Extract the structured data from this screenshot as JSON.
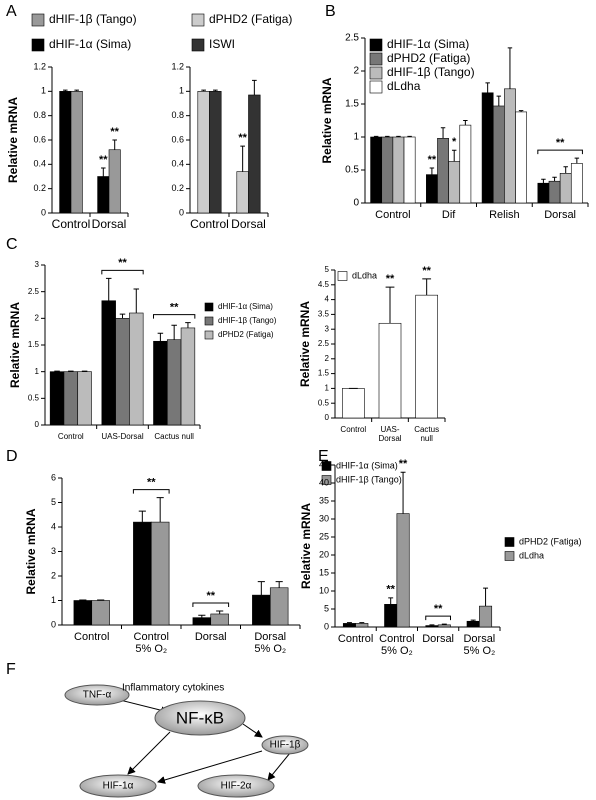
{
  "chart_data": [
    {
      "type": "bar",
      "panel": "A",
      "y_label": "Relative mRNA",
      "categories": [
        "Control",
        "Dorsal"
      ],
      "series": [
        {
          "name": "dHIF-1α (Sima)",
          "color": "#000000",
          "values": [
            1,
            0.3
          ],
          "errors": [
            0.01,
            0.07
          ]
        },
        {
          "name": "dHIF-1β (Tango)",
          "color": "#999999",
          "values": [
            1,
            0.52
          ],
          "errors": [
            0.01,
            0.08
          ]
        }
      ],
      "ylim": [
        0,
        1.2
      ],
      "yticks": [
        0,
        0.2,
        0.4,
        0.6,
        0.8,
        1,
        1.2
      ],
      "annotations": [
        {
          "text": "**",
          "category": "Dorsal",
          "series": "dHIF-1α (Sima)"
        },
        {
          "text": "**",
          "category": "Dorsal",
          "series": "dHIF-1β (Tango)"
        }
      ]
    },
    {
      "type": "bar",
      "categories": [
        "Control",
        "Dorsal"
      ],
      "series": [
        {
          "name": "dPHD2 (Fatiga)",
          "color": "#cccccc",
          "values": [
            1,
            0.34
          ],
          "errors": [
            0.01,
            0.21
          ]
        },
        {
          "name": "ISWI",
          "color": "#333333",
          "values": [
            1,
            0.97
          ],
          "errors": [
            0.01,
            0.12
          ]
        }
      ],
      "ylim": [
        0,
        1.2
      ],
      "yticks": [
        0,
        0.2,
        0.4,
        0.6,
        0.8,
        1,
        1.2
      ],
      "annotations": [
        {
          "text": "**",
          "category": "Dorsal",
          "series": "dPHD2 (Fatiga)"
        }
      ]
    },
    {
      "type": "bar",
      "panel": "B",
      "y_label": "Relative mRNA",
      "categories": [
        "Control",
        "Dif",
        "Relish",
        "Dorsal"
      ],
      "series": [
        {
          "name": "dHIF-1α (Sima)",
          "color": "#000000",
          "values": [
            1,
            0.43,
            1.67,
            0.3
          ],
          "errors": [
            0.01,
            0.1,
            0.15,
            0.06
          ]
        },
        {
          "name": "dPHD2 (Fatiga)",
          "color": "#777777",
          "values": [
            1,
            0.98,
            1.47,
            0.33
          ],
          "errors": [
            0.01,
            0.16,
            0.15,
            0.06
          ]
        },
        {
          "name": "dHIF-1β (Tango)",
          "color": "#bbbbbb",
          "values": [
            1,
            0.63,
            1.73,
            0.45
          ],
          "errors": [
            0.01,
            0.17,
            0.62,
            0.1
          ]
        },
        {
          "name": "dLdha",
          "color": "#ffffff",
          "values": [
            1,
            1.18,
            1.38,
            0.6
          ],
          "errors": [
            0.01,
            0.07,
            0.02,
            0.08
          ]
        }
      ],
      "ylim": [
        0,
        2.5
      ],
      "yticks": [
        0,
        0.5,
        1,
        1.5,
        2,
        2.5
      ],
      "annotations": [
        {
          "text": "**",
          "category": "Dif",
          "series": "dHIF-1α (Sima)"
        },
        {
          "text": "*",
          "category": "Dif",
          "series": "dHIF-1β (Tango)"
        },
        {
          "text": "**",
          "category": "Dorsal"
        }
      ]
    },
    {
      "type": "bar",
      "panel": "C",
      "y_label": "Relative mRNA",
      "categories": [
        "Control",
        "UAS-Dorsal",
        "Cactus null"
      ],
      "series": [
        {
          "name": "dHIF-1α (Sima)",
          "color": "#000000",
          "values": [
            1,
            2.33,
            1.57
          ],
          "errors": [
            0.01,
            0.42,
            0.15
          ]
        },
        {
          "name": "dHIF-1β (Tango)",
          "color": "#777777",
          "values": [
            1,
            2.0,
            1.6
          ],
          "errors": [
            0.01,
            0.08,
            0.27
          ]
        },
        {
          "name": "dPHD2 (Fatiga)",
          "color": "#bbbbbb",
          "values": [
            1,
            2.1,
            1.82
          ],
          "errors": [
            0.01,
            0.45,
            0.1
          ]
        }
      ],
      "ylim": [
        0,
        3
      ],
      "yticks": [
        0,
        0.5,
        1,
        1.5,
        2,
        2.5,
        3
      ],
      "annotations": [
        {
          "text": "**",
          "category": "UAS-Dorsal"
        },
        {
          "text": "**",
          "category": "Cactus null"
        }
      ]
    },
    {
      "type": "bar",
      "y_label": "Relative mRNA",
      "categories": [
        "Control",
        "UAS-Dorsal",
        "Cactus null"
      ],
      "series": [
        {
          "name": "dLdha",
          "color": "#ffffff",
          "values": [
            1,
            3.2,
            4.15
          ],
          "errors": [
            0,
            1.22,
            0.55
          ]
        }
      ],
      "ylim": [
        0,
        5
      ],
      "yticks": [
        0,
        0.5,
        1,
        1.5,
        2,
        2.5,
        3,
        3.5,
        4,
        4.5,
        5
      ],
      "annotations": [
        {
          "text": "**",
          "category": "UAS-Dorsal",
          "series": "dLdha"
        },
        {
          "text": "**",
          "category": "Cactus null",
          "series": "dLdha"
        }
      ]
    },
    {
      "type": "bar",
      "panel": "D",
      "y_label": "Relative mRNA",
      "categories": [
        "Control",
        "Control 5% O₂",
        "Dorsal",
        "Dorsal 5% O₂"
      ],
      "series": [
        {
          "name": "dHIF-1α (Sima)",
          "color": "#000000",
          "values": [
            1,
            4.2,
            0.3,
            1.22
          ],
          "errors": [
            0.02,
            0.45,
            0.1,
            0.55
          ]
        },
        {
          "name": "dHIF-1β (Tango)",
          "color": "#999999",
          "values": [
            1,
            4.2,
            0.45,
            1.52
          ],
          "errors": [
            0.02,
            1.0,
            0.12,
            0.25
          ]
        }
      ],
      "ylim": [
        0,
        6
      ],
      "yticks": [
        0,
        1,
        2,
        3,
        4,
        5,
        6
      ],
      "annotations": [
        {
          "text": "**",
          "category": "Control 5% O₂"
        },
        {
          "text": "**",
          "category": "Dorsal"
        }
      ]
    },
    {
      "type": "bar",
      "panel": "E",
      "y_label": "Relative mRNA",
      "categories": [
        "Control",
        "Control 5% O₂",
        "Dorsal",
        "Dorsal 5% O₂"
      ],
      "series": [
        {
          "name": "dPHD2 (Fatiga)",
          "color": "#000000",
          "values": [
            1,
            6.3,
            0.4,
            1.6
          ],
          "errors": [
            0.2,
            1.8,
            0.2,
            0.3
          ]
        },
        {
          "name": "dLdha",
          "color": "#999999",
          "values": [
            1,
            31.5,
            0.6,
            5.8
          ],
          "errors": [
            0.2,
            11.5,
            0.2,
            5
          ]
        }
      ],
      "ylim": [
        0,
        45
      ],
      "yticks": [
        0,
        5,
        10,
        15,
        20,
        25,
        30,
        35,
        40,
        45
      ],
      "annotations": [
        {
          "text": "**",
          "category": "Control 5% O₂",
          "series": "dPHD2 (Fatiga)"
        },
        {
          "text": "**",
          "category": "Control 5% O₂",
          "series": "dLdha"
        },
        {
          "text": "**",
          "category": "Dorsal"
        }
      ]
    }
  ],
  "diagram": {
    "panel": "F",
    "label": "Inflammatory cytokines",
    "nodes": [
      "TNF-α",
      "NF-κB",
      "HIF-1β",
      "HIF-1α",
      "HIF-2α"
    ]
  }
}
